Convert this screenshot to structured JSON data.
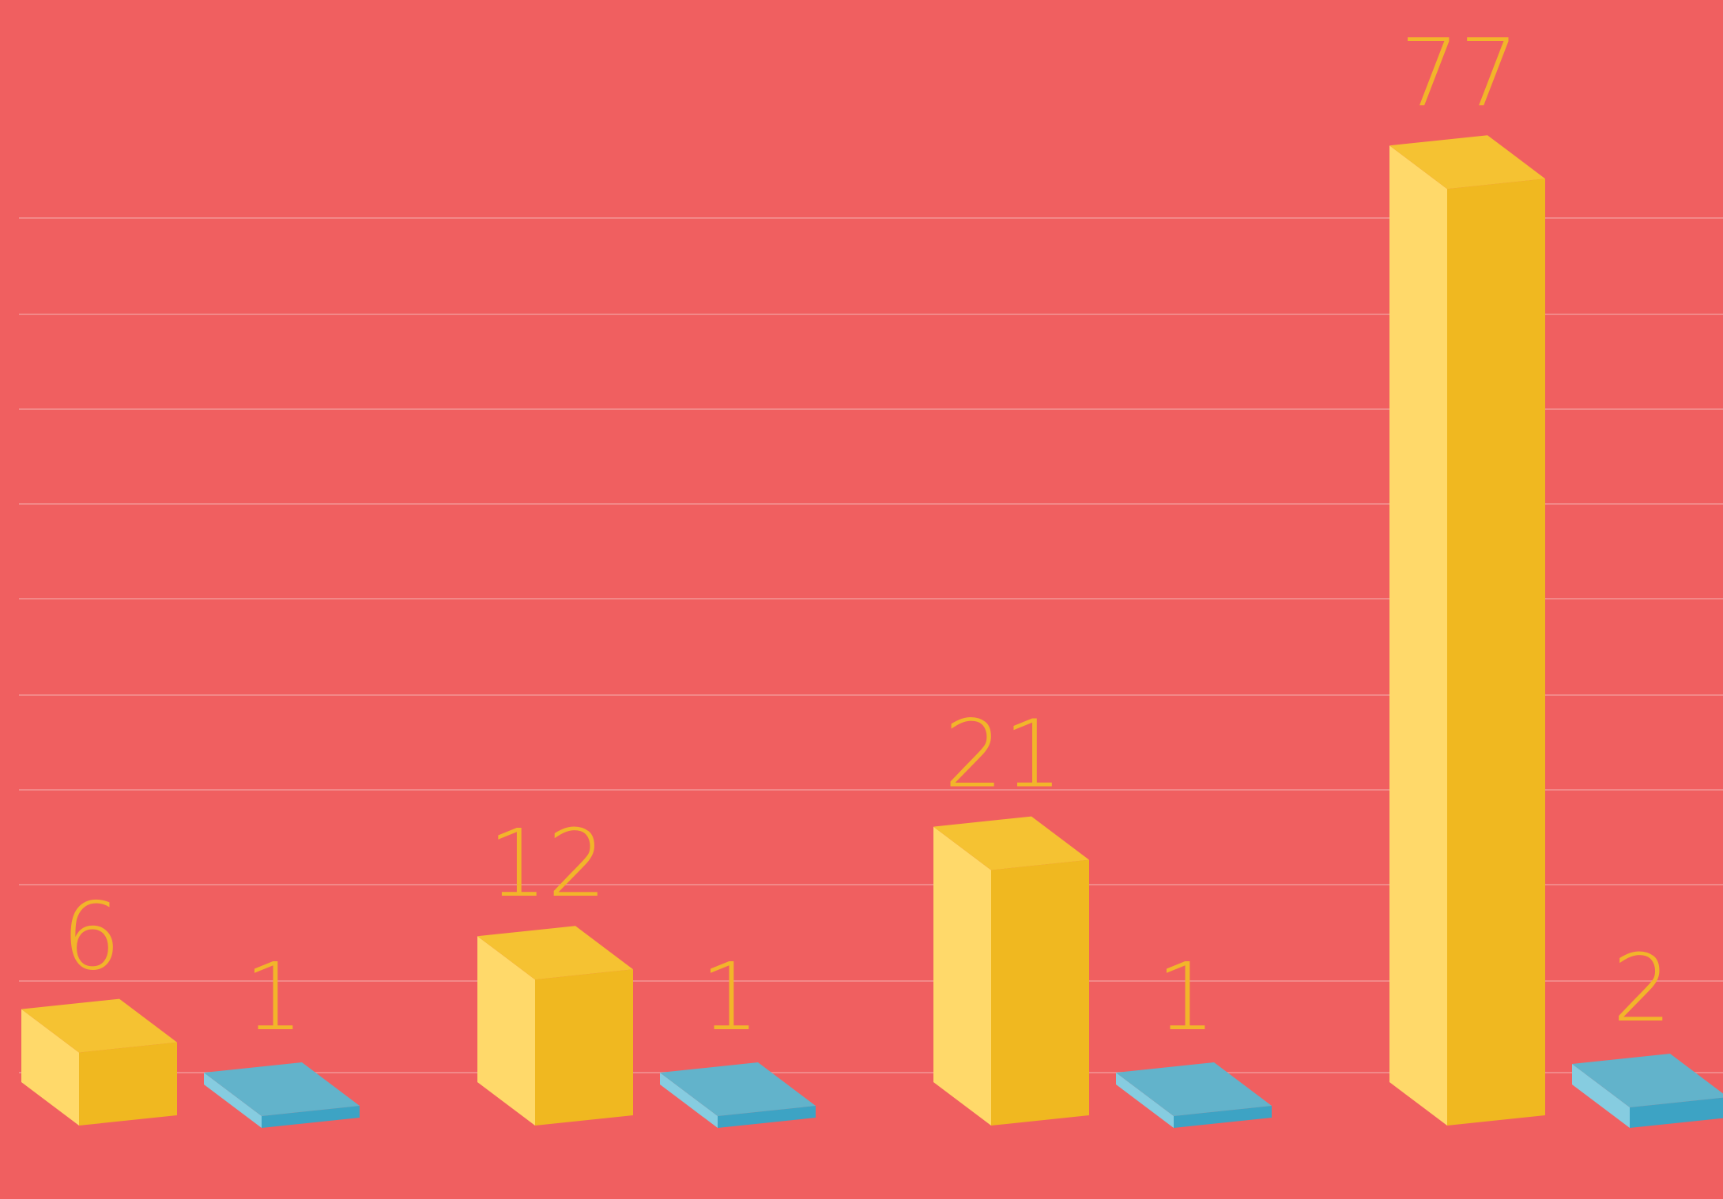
{
  "chart_data": {
    "type": "bar",
    "style": "3d",
    "title": "",
    "xlabel": "",
    "ylabel": "",
    "categories": [
      "",
      "",
      "",
      ""
    ],
    "series": [
      {
        "values": [
          6,
          12,
          21,
          77
        ],
        "color": "#F0B820"
      },
      {
        "values": [
          1,
          1,
          1,
          2
        ],
        "color": "#62B3CB"
      }
    ],
    "grid": true,
    "legend": "none"
  },
  "colors": {
    "background": "#F05F60",
    "gridline": "#F28888",
    "label": "#F2B52A",
    "yellow_top": "#F5C232",
    "yellow_left": "#FFD96A",
    "yellow_front": "#F0B820",
    "blue_top": "#62B3CB",
    "blue_left": "#86CCE0",
    "blue_front": "#3DA3C4"
  }
}
